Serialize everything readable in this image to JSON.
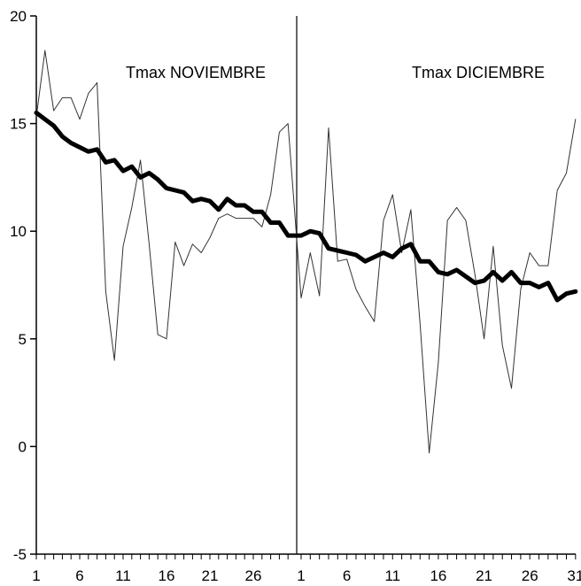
{
  "chart_data": {
    "type": "line",
    "panels": [
      {
        "title": "Tmax NOVIEMBRE",
        "days": 30,
        "x_tick_labels": [
          "1",
          "6",
          "11",
          "16",
          "21",
          "26"
        ]
      },
      {
        "title": "Tmax DICIEMBRE",
        "days": 31,
        "x_tick_labels": [
          "1",
          "6",
          "11",
          "16",
          "21",
          "26",
          "31"
        ]
      }
    ],
    "ylim": [
      -5,
      20
    ],
    "y_ticks": [
      -5,
      0,
      5,
      10,
      15,
      20
    ],
    "y_tick_labels": [
      "-5",
      "0",
      "5",
      "10",
      "15",
      "20"
    ],
    "grid": false,
    "series": [
      {
        "style": "thin",
        "color": "#333333",
        "values": [
          15.3,
          18.4,
          15.6,
          16.2,
          16.2,
          15.2,
          16.4,
          16.9,
          7.2,
          4.0,
          9.3,
          11.1,
          13.3,
          9.4,
          5.2,
          5.0,
          9.5,
          8.4,
          9.4,
          9.0,
          9.7,
          10.6,
          10.8,
          10.6,
          10.6,
          10.6,
          10.2,
          11.7,
          14.6,
          15.0,
          6.9,
          9.0,
          7.0,
          14.8,
          8.6,
          8.7,
          7.3,
          6.5,
          5.8,
          10.5,
          11.7,
          9.0,
          11.0,
          5.7,
          -0.3,
          3.9,
          10.5,
          11.1,
          10.5,
          8.0,
          5.0,
          9.3,
          4.7,
          2.7,
          7.3,
          9.0,
          8.4,
          8.4,
          11.9,
          12.7,
          15.2
        ]
      },
      {
        "style": "thick",
        "color": "#000000",
        "values": [
          15.5,
          15.2,
          14.9,
          14.4,
          14.1,
          13.9,
          13.7,
          13.8,
          13.2,
          13.3,
          12.8,
          13.0,
          12.5,
          12.7,
          12.4,
          12.0,
          11.9,
          11.8,
          11.4,
          11.5,
          11.4,
          11.0,
          11.5,
          11.2,
          11.2,
          10.9,
          10.9,
          10.4,
          10.4,
          9.8,
          9.8,
          10.0,
          9.9,
          9.2,
          9.1,
          9.0,
          8.9,
          8.6,
          8.8,
          9.0,
          8.8,
          9.2,
          9.4,
          8.6,
          8.6,
          8.1,
          8.0,
          8.2,
          7.9,
          7.6,
          7.7,
          8.1,
          7.7,
          8.1,
          7.6,
          7.6,
          7.4,
          7.6,
          6.8,
          7.1,
          7.2
        ]
      }
    ]
  }
}
